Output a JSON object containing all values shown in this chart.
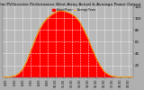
{
  "title": "Solar PV/Inverter Performance West Array Actual & Average Power Output",
  "title_fontsize": 3.2,
  "legend_labels": [
    "Actual Power",
    "Average Power"
  ],
  "fill_color": "#ff0000",
  "line_color": "#cc0000",
  "avg_color": "#ffaa00",
  "bg_color": "#b0b0b0",
  "plot_bg_color": "#b8b8b8",
  "ylim": [
    0,
    120
  ],
  "yticks": [
    20,
    40,
    60,
    80,
    100,
    120
  ],
  "ytick_labels": [
    "20",
    "40",
    "60",
    "80",
    "100",
    "120"
  ],
  "ytick_fontsize": 2.8,
  "xtick_fontsize": 2.3,
  "grid_color": "#ffffff",
  "grid_alpha": 0.9,
  "hours": [
    4.0,
    4.5,
    5.0,
    5.5,
    6.0,
    6.5,
    7.0,
    7.5,
    8.0,
    8.5,
    9.0,
    9.5,
    10.0,
    10.5,
    11.0,
    11.5,
    12.0,
    12.5,
    13.0,
    13.5,
    14.0,
    14.5,
    15.0,
    15.5,
    16.0,
    16.5,
    17.0,
    17.5,
    18.0,
    18.5,
    19.0,
    19.5,
    20.0
  ],
  "actual_power": [
    0,
    0,
    0.5,
    2,
    6,
    14,
    28,
    46,
    64,
    80,
    92,
    100,
    106,
    110,
    113,
    112,
    110,
    107,
    102,
    93,
    80,
    65,
    48,
    32,
    19,
    9,
    4,
    1.5,
    0.5,
    0.1,
    0,
    0,
    0
  ],
  "avg_power": [
    0,
    0,
    0.5,
    2,
    6,
    14,
    28,
    46,
    64,
    80,
    92,
    100,
    106,
    110,
    113,
    112,
    110,
    107,
    102,
    93,
    80,
    65,
    48,
    32,
    19,
    9,
    4,
    1.5,
    0.5,
    0.1,
    0,
    0,
    0
  ],
  "xlim": [
    4.0,
    20.0
  ],
  "xtick_hours": [
    4.5,
    5.5,
    6.5,
    7.5,
    8.5,
    9.5,
    10.5,
    11.5,
    12.5,
    13.5,
    14.5,
    15.5,
    16.5,
    17.5,
    18.5,
    19.5
  ],
  "xtick_labels": [
    "4:30",
    "5:30",
    "6:30",
    "7:30",
    "8:30",
    "9:30",
    "10:30",
    "11:30",
    "12:30",
    "13:30",
    "14:30",
    "15:30",
    "16:30",
    "17:30",
    "18:30",
    "19:30"
  ]
}
